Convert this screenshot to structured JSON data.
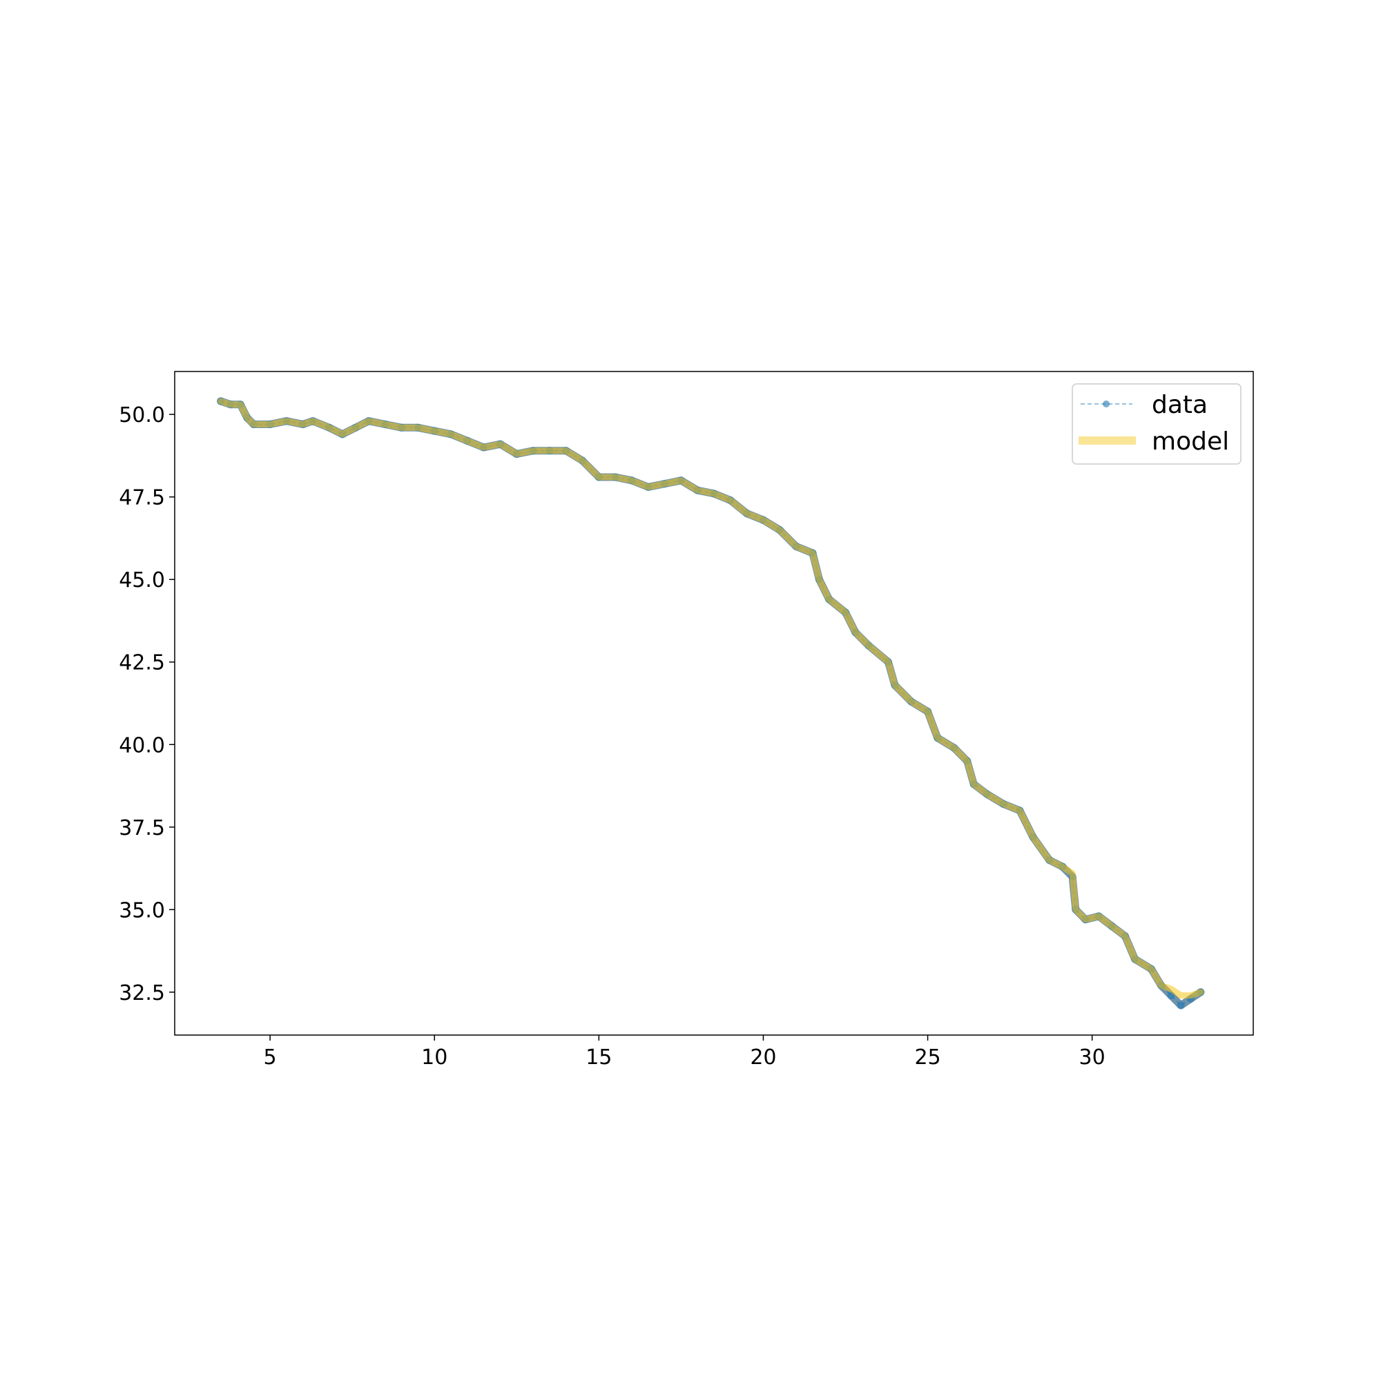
{
  "chart_data": {
    "type": "line",
    "title": "",
    "xlabel": "",
    "ylabel": "",
    "xlim": [
      2.1,
      34.9
    ],
    "ylim": [
      31.2,
      51.3
    ],
    "xticks": [
      5,
      10,
      15,
      20,
      25,
      30
    ],
    "xtick_labels": [
      "5",
      "10",
      "15",
      "20",
      "25",
      "30"
    ],
    "yticks": [
      32.5,
      35.0,
      37.5,
      40.0,
      42.5,
      45.0,
      47.5,
      50.0
    ],
    "ytick_labels": [
      "32.5",
      "35.0",
      "37.5",
      "40.0",
      "42.5",
      "45.0",
      "47.5",
      "50.0"
    ],
    "grid": false,
    "legend_position": "top-right",
    "series": [
      {
        "name": "data",
        "style": "dashed line with circle markers",
        "color": "#1f77b4",
        "x": [
          3.5,
          3.8,
          4.1,
          4.3,
          4.5,
          5.0,
          5.5,
          6.0,
          6.3,
          6.8,
          7.2,
          7.6,
          8.0,
          8.5,
          9.0,
          9.5,
          10.0,
          10.5,
          11.0,
          11.5,
          12.0,
          12.5,
          13.0,
          13.5,
          14.0,
          14.5,
          15.0,
          15.5,
          16.0,
          16.5,
          17.0,
          17.5,
          18.0,
          18.5,
          19.0,
          19.5,
          20.0,
          20.5,
          21.0,
          21.5,
          21.7,
          22.0,
          22.5,
          22.8,
          23.2,
          23.8,
          24.0,
          24.5,
          25.0,
          25.3,
          25.8,
          26.2,
          26.4,
          26.8,
          27.3,
          27.8,
          28.2,
          28.7,
          29.1,
          29.4,
          29.5,
          29.8,
          30.2,
          30.6,
          31.0,
          31.3,
          31.8,
          32.1,
          32.4,
          32.7,
          33.0,
          33.3
        ],
        "y": [
          50.4,
          50.3,
          50.3,
          49.9,
          49.7,
          49.7,
          49.8,
          49.7,
          49.8,
          49.6,
          49.4,
          49.6,
          49.8,
          49.7,
          49.6,
          49.6,
          49.5,
          49.4,
          49.2,
          49.0,
          49.1,
          48.8,
          48.9,
          48.9,
          48.9,
          48.6,
          48.1,
          48.1,
          48.0,
          47.8,
          47.9,
          48.0,
          47.7,
          47.6,
          47.4,
          47.0,
          46.8,
          46.5,
          46.0,
          45.8,
          45.0,
          44.4,
          44.0,
          43.4,
          43.0,
          42.5,
          41.8,
          41.3,
          41.0,
          40.2,
          39.9,
          39.5,
          38.8,
          38.5,
          38.2,
          38.0,
          37.2,
          36.5,
          36.3,
          36.0,
          35.0,
          34.7,
          34.8,
          34.5,
          34.2,
          33.5,
          33.2,
          32.7,
          32.4,
          32.1,
          32.3,
          32.5
        ]
      },
      {
        "name": "model",
        "style": "thick solid line",
        "color": "#f5c518",
        "x": [
          3.5,
          3.8,
          4.1,
          4.3,
          4.5,
          5.0,
          5.5,
          6.0,
          6.3,
          6.8,
          7.2,
          7.6,
          8.0,
          8.5,
          9.0,
          9.5,
          10.0,
          10.5,
          11.0,
          11.5,
          12.0,
          12.5,
          13.0,
          13.5,
          14.0,
          14.5,
          15.0,
          15.5,
          16.0,
          16.5,
          17.0,
          17.5,
          18.0,
          18.5,
          19.0,
          19.5,
          20.0,
          20.5,
          21.0,
          21.5,
          21.7,
          22.0,
          22.5,
          22.8,
          23.2,
          23.8,
          24.0,
          24.5,
          25.0,
          25.3,
          25.8,
          26.2,
          26.4,
          26.8,
          27.3,
          27.8,
          28.2,
          28.7,
          29.1,
          29.4,
          29.5,
          29.8,
          30.2,
          30.6,
          31.0,
          31.3,
          31.8,
          32.1,
          32.4,
          32.7,
          33.0,
          33.3
        ],
        "y": [
          50.4,
          50.3,
          50.3,
          49.9,
          49.7,
          49.7,
          49.8,
          49.7,
          49.8,
          49.6,
          49.4,
          49.6,
          49.8,
          49.7,
          49.6,
          49.6,
          49.5,
          49.4,
          49.2,
          49.0,
          49.1,
          48.8,
          48.9,
          48.9,
          48.9,
          48.6,
          48.1,
          48.1,
          48.0,
          47.8,
          47.9,
          48.0,
          47.7,
          47.6,
          47.4,
          47.0,
          46.8,
          46.5,
          46.0,
          45.8,
          45.0,
          44.4,
          44.0,
          43.4,
          43.0,
          42.5,
          41.8,
          41.3,
          41.0,
          40.2,
          39.9,
          39.5,
          38.8,
          38.5,
          38.2,
          38.0,
          37.2,
          36.5,
          36.3,
          36.1,
          35.0,
          34.7,
          34.8,
          34.5,
          34.2,
          33.5,
          33.2,
          32.7,
          32.6,
          32.4,
          32.4,
          32.5
        ]
      }
    ]
  }
}
